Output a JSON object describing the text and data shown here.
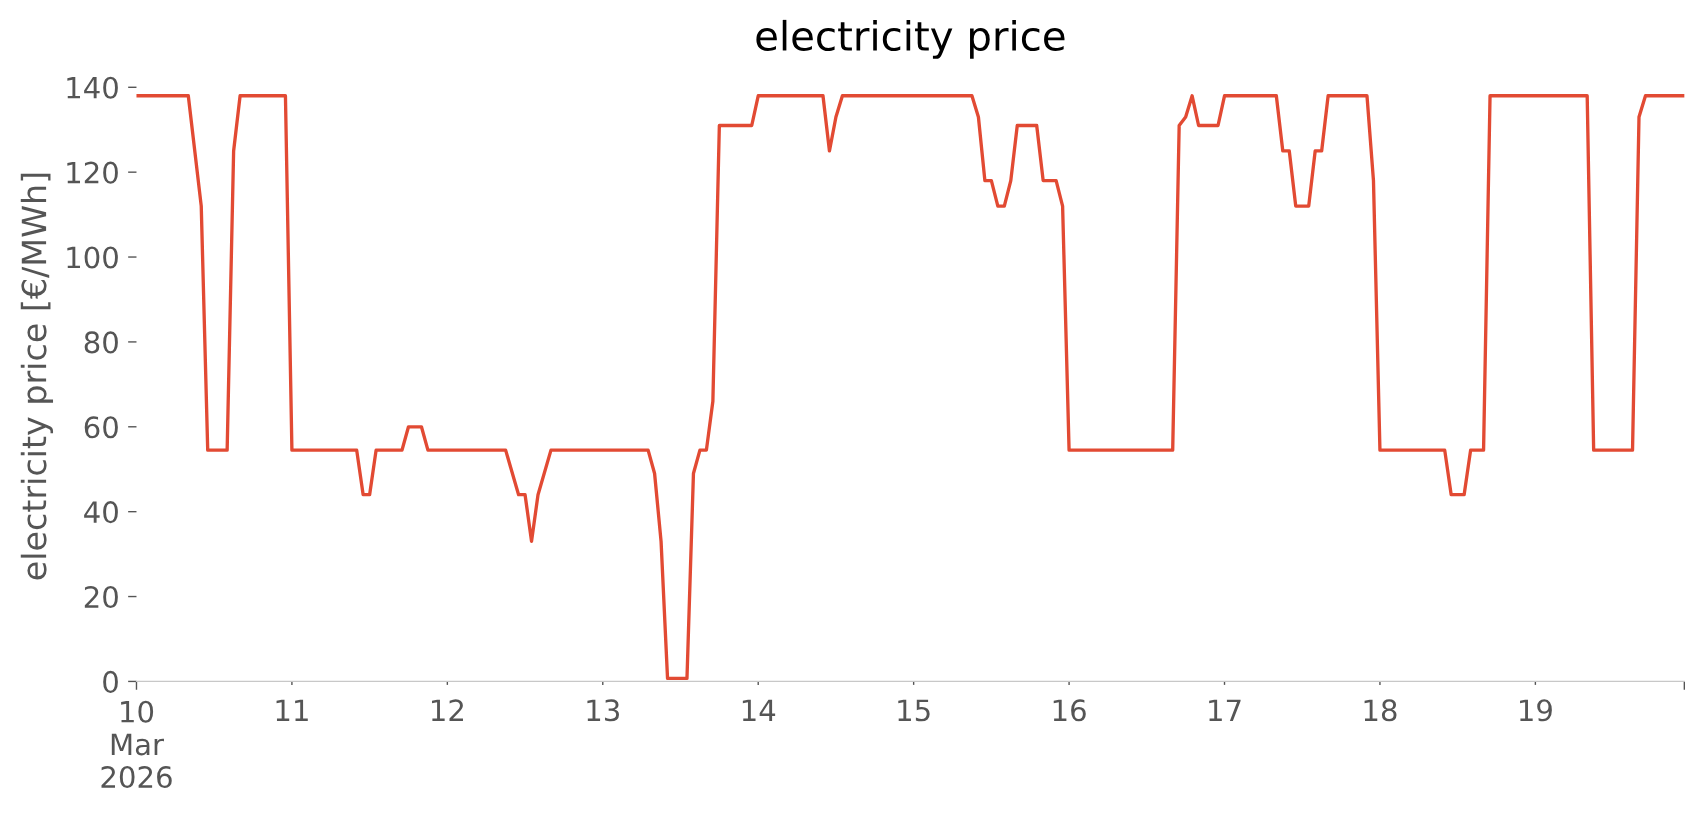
{
  "chart_data": {
    "type": "line",
    "title": "electricity price",
    "ylabel": "electricity price [€/MWh]",
    "series": [
      {
        "color": "#e24a33",
        "line_style": "solid",
        "x": [
          "2026-03-10T00:00",
          "2026-03-10T08:00",
          "2026-03-10T10:00",
          "2026-03-10T11:00",
          "2026-03-10T14:00",
          "2026-03-10T15:00",
          "2026-03-10T16:00",
          "2026-03-10T23:00",
          "2026-03-11T00:00",
          "2026-03-11T10:00",
          "2026-03-11T11:00",
          "2026-03-11T12:00",
          "2026-03-11T13:00",
          "2026-03-11T17:00",
          "2026-03-11T18:00",
          "2026-03-11T20:00",
          "2026-03-11T21:00",
          "2026-03-12T09:00",
          "2026-03-12T11:00",
          "2026-03-12T12:00",
          "2026-03-12T13:00",
          "2026-03-12T14:00",
          "2026-03-12T16:00",
          "2026-03-13T07:00",
          "2026-03-13T08:00",
          "2026-03-13T09:00",
          "2026-03-13T10:00",
          "2026-03-13T13:00",
          "2026-03-13T14:00",
          "2026-03-13T15:00",
          "2026-03-13T16:00",
          "2026-03-13T17:00",
          "2026-03-13T18:00",
          "2026-03-13T23:00",
          "2026-03-14T00:00",
          "2026-03-14T10:00",
          "2026-03-14T11:00",
          "2026-03-14T12:00",
          "2026-03-14T13:00",
          "2026-03-15T09:00",
          "2026-03-15T10:00",
          "2026-03-15T11:00",
          "2026-03-15T12:00",
          "2026-03-15T13:00",
          "2026-03-15T14:00",
          "2026-03-15T15:00",
          "2026-03-15T16:00",
          "2026-03-15T19:00",
          "2026-03-15T20:00",
          "2026-03-15T22:00",
          "2026-03-15T23:00",
          "2026-03-16T00:00",
          "2026-03-16T16:00",
          "2026-03-16T17:00",
          "2026-03-16T18:00",
          "2026-03-16T19:00",
          "2026-03-16T20:00",
          "2026-03-16T23:00",
          "2026-03-17T00:00",
          "2026-03-17T08:00",
          "2026-03-17T09:00",
          "2026-03-17T10:00",
          "2026-03-17T11:00",
          "2026-03-17T13:00",
          "2026-03-17T14:00",
          "2026-03-17T15:00",
          "2026-03-17T16:00",
          "2026-03-17T22:00",
          "2026-03-17T23:00",
          "2026-03-18T00:00",
          "2026-03-18T10:00",
          "2026-03-18T11:00",
          "2026-03-18T13:00",
          "2026-03-18T14:00",
          "2026-03-18T16:00",
          "2026-03-18T17:00",
          "2026-03-19T08:00",
          "2026-03-19T09:00",
          "2026-03-19T15:00",
          "2026-03-19T16:00",
          "2026-03-19T17:00",
          "2026-03-19T23:00"
        ],
        "values": [
          138,
          138,
          112,
          54.5,
          54.5,
          125,
          138,
          138,
          54.5,
          54.5,
          44,
          44,
          54.5,
          54.5,
          60,
          60,
          54.5,
          54.5,
          44,
          44,
          33,
          44,
          54.5,
          54.5,
          49,
          33,
          0.7,
          0.7,
          49,
          54.5,
          54.5,
          66,
          131,
          131,
          138,
          138,
          125,
          133,
          138,
          138,
          133,
          118,
          118,
          112,
          112,
          118,
          131,
          131,
          118,
          118,
          112,
          54.5,
          54.5,
          131,
          133,
          138,
          131,
          131,
          138,
          138,
          125,
          125,
          112,
          112,
          125,
          125,
          138,
          138,
          118,
          54.5,
          54.5,
          44,
          44,
          54.5,
          54.5,
          138,
          138,
          54.5,
          54.5,
          133,
          138,
          138
        ]
      }
    ],
    "xlim": [
      "2026-03-10T00:00",
      "2026-03-19T23:00"
    ],
    "xticks": [
      {
        "value": "2026-03-10",
        "label": "10\nMar\n2026"
      },
      {
        "value": "2026-03-11",
        "label": "11"
      },
      {
        "value": "2026-03-12",
        "label": "12"
      },
      {
        "value": "2026-03-13",
        "label": "13"
      },
      {
        "value": "2026-03-14",
        "label": "14"
      },
      {
        "value": "2026-03-15",
        "label": "15"
      },
      {
        "value": "2026-03-16",
        "label": "16"
      },
      {
        "value": "2026-03-17",
        "label": "17"
      },
      {
        "value": "2026-03-18",
        "label": "18"
      },
      {
        "value": "2026-03-19",
        "label": "19"
      },
      {
        "value": "2026-03-19T23:00",
        "label": null
      }
    ],
    "ylim": [
      0,
      140
    ],
    "yticks": [
      0,
      20,
      40,
      60,
      80,
      100,
      120,
      140
    ],
    "grid": false
  }
}
